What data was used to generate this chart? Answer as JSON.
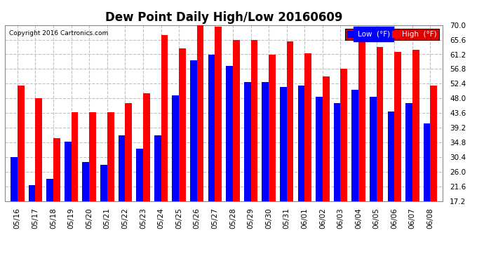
{
  "title": "Dew Point Daily High/Low 20160609",
  "copyright": "Copyright 2016 Cartronics.com",
  "legend_low": "Low  (°F)",
  "legend_high": "High  (°F)",
  "categories": [
    "05/16",
    "05/17",
    "05/18",
    "05/19",
    "05/20",
    "05/21",
    "05/22",
    "05/23",
    "05/24",
    "05/25",
    "05/26",
    "05/27",
    "05/28",
    "05/29",
    "05/30",
    "05/31",
    "06/01",
    "06/02",
    "06/03",
    "06/04",
    "06/05",
    "06/06",
    "06/07",
    "06/08"
  ],
  "low_values": [
    30.4,
    22.0,
    24.0,
    35.0,
    29.0,
    28.0,
    37.0,
    33.0,
    37.0,
    49.0,
    59.5,
    61.2,
    57.8,
    53.0,
    52.8,
    51.5,
    51.8,
    48.5,
    46.5,
    50.5,
    48.5,
    44.0,
    46.5,
    40.5
  ],
  "high_values": [
    51.8,
    48.0,
    36.0,
    43.8,
    43.8,
    43.8,
    46.5,
    49.5,
    67.0,
    63.0,
    70.0,
    69.5,
    65.6,
    65.6,
    61.2,
    65.0,
    61.5,
    54.5,
    56.8,
    65.6,
    63.5,
    62.0,
    62.5,
    51.8
  ],
  "ylim": [
    17.2,
    70.0
  ],
  "yticks": [
    17.2,
    21.6,
    26.0,
    30.4,
    34.8,
    39.2,
    43.6,
    48.0,
    52.4,
    56.8,
    61.2,
    65.6,
    70.0
  ],
  "low_color": "#0000ff",
  "high_color": "#ff0000",
  "bg_color": "#ffffff",
  "plot_bg_color": "#ffffff",
  "grid_color": "#c0c0c0",
  "title_fontsize": 12,
  "axis_fontsize": 7.5,
  "bar_width": 0.38
}
